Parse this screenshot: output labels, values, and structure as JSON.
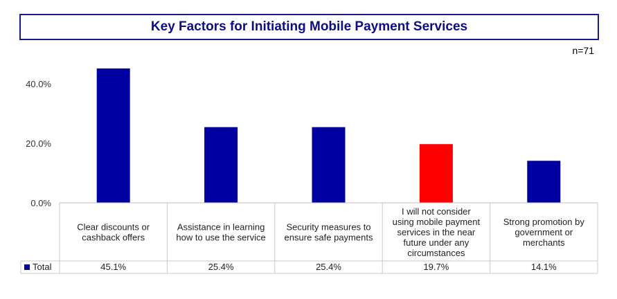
{
  "header": {
    "title": "Key Factors for Initiating Mobile Payment Services",
    "sample_size": "n=71"
  },
  "colors": {
    "primary": "#0000a0",
    "highlight": "#ff0000"
  },
  "chart_data": {
    "type": "bar",
    "title": "Key Factors for Initiating Mobile Payment Services",
    "categories": [
      [
        "Clear discounts or",
        "cashback offers"
      ],
      [
        "Assistance in learning",
        "how to use the service"
      ],
      [
        "Security measures to",
        "ensure safe payments"
      ],
      [
        "I will not consider",
        "using mobile payment",
        "services in the near",
        "future under any",
        "circumstances"
      ],
      [
        "Strong promotion by",
        "government or",
        "merchants"
      ]
    ],
    "series": [
      {
        "name": "Total",
        "values": [
          45.1,
          25.4,
          25.4,
          19.7,
          14.1
        ],
        "labels": [
          "45.1%",
          "25.4%",
          "25.4%",
          "19.7%",
          "14.1%"
        ]
      }
    ],
    "highlight_index": 3,
    "yticks": [
      "0.0%",
      "20.0%",
      "40.0%"
    ],
    "ytick_values": [
      0,
      20,
      40
    ],
    "ylim": [
      0,
      46
    ],
    "legend_position": "table-left",
    "grid": false
  }
}
